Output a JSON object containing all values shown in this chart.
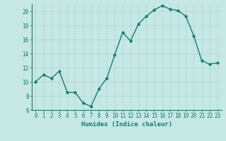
{
  "x": [
    0,
    1,
    2,
    3,
    4,
    5,
    6,
    7,
    8,
    9,
    10,
    11,
    12,
    13,
    14,
    15,
    16,
    17,
    18,
    19,
    20,
    21,
    22,
    23
  ],
  "y": [
    10,
    11,
    10.5,
    11.5,
    8.5,
    8.5,
    7,
    6.5,
    9,
    10.5,
    13.8,
    17,
    15.8,
    18.2,
    19.3,
    20.2,
    20.8,
    20.3,
    20.1,
    19.3,
    16.5,
    13,
    12.5,
    12.7
  ],
  "line_color": "#1a7a6e",
  "marker_color": "#1a7a6e",
  "bg_color": "#c5e8e5",
  "grid_color": "#aed4d0",
  "axis_color": "#1a7a6e",
  "xlabel": "Humidex (Indice chaleur)",
  "xlim": [
    -0.5,
    23.5
  ],
  "ylim": [
    6,
    21
  ],
  "yticks": [
    6,
    8,
    10,
    12,
    14,
    16,
    18,
    20
  ],
  "xticks": [
    0,
    1,
    2,
    3,
    4,
    5,
    6,
    7,
    8,
    9,
    10,
    11,
    12,
    13,
    14,
    15,
    16,
    17,
    18,
    19,
    20,
    21,
    22,
    23
  ],
  "xlabel_fontsize": 6.5,
  "tick_fontsize": 5.5,
  "line_width": 1.0,
  "marker_size": 2.5
}
